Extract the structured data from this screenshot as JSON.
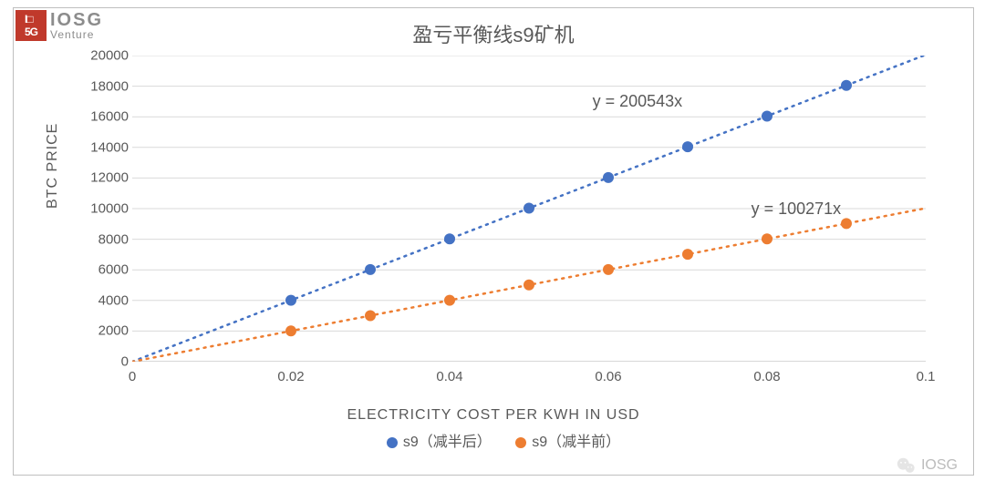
{
  "brand": {
    "name": "IOSG",
    "sub": "Venture"
  },
  "chart": {
    "type": "scatter-line",
    "title": "盈亏平衡线s9矿机",
    "xlabel": "ELECTRICITY COST PER KWH IN USD",
    "ylabel": "BTC PRICE",
    "xlim": [
      0,
      0.1
    ],
    "ylim": [
      0,
      20000
    ],
    "xticks": [
      0,
      0.02,
      0.04,
      0.06,
      0.08,
      0.1
    ],
    "yticks": [
      0,
      2000,
      4000,
      6000,
      8000,
      10000,
      12000,
      14000,
      16000,
      18000,
      20000
    ],
    "background": "#ffffff",
    "grid_color": "#d9d9d9",
    "axis_color": "#bfbfbf",
    "text_color": "#595959",
    "label_fontsize": 16,
    "tick_fontsize": 15,
    "title_fontsize": 22,
    "marker_radius": 6,
    "line_dash": "2,6",
    "line_width": 2.5,
    "series": [
      {
        "name": "s9（减半后）",
        "color": "#4472c4",
        "equation": "y = 200543x",
        "eq_pos": {
          "x": 0.058,
          "y": 17600
        },
        "x": [
          0.02,
          0.03,
          0.04,
          0.05,
          0.06,
          0.07,
          0.08,
          0.09
        ],
        "y": [
          4010.86,
          6016.29,
          8021.72,
          10027.15,
          12032.58,
          14038.01,
          16043.44,
          18048.87
        ]
      },
      {
        "name": "s9（减半前）",
        "color": "#ed7d31",
        "equation": "y = 100271x",
        "eq_pos": {
          "x": 0.078,
          "y": 10600
        },
        "x": [
          0.02,
          0.03,
          0.04,
          0.05,
          0.06,
          0.07,
          0.08,
          0.09
        ],
        "y": [
          2005.42,
          3008.13,
          4010.84,
          5013.55,
          6016.26,
          7018.97,
          8021.68,
          9024.39
        ]
      }
    ]
  },
  "watermark": "IOSG"
}
